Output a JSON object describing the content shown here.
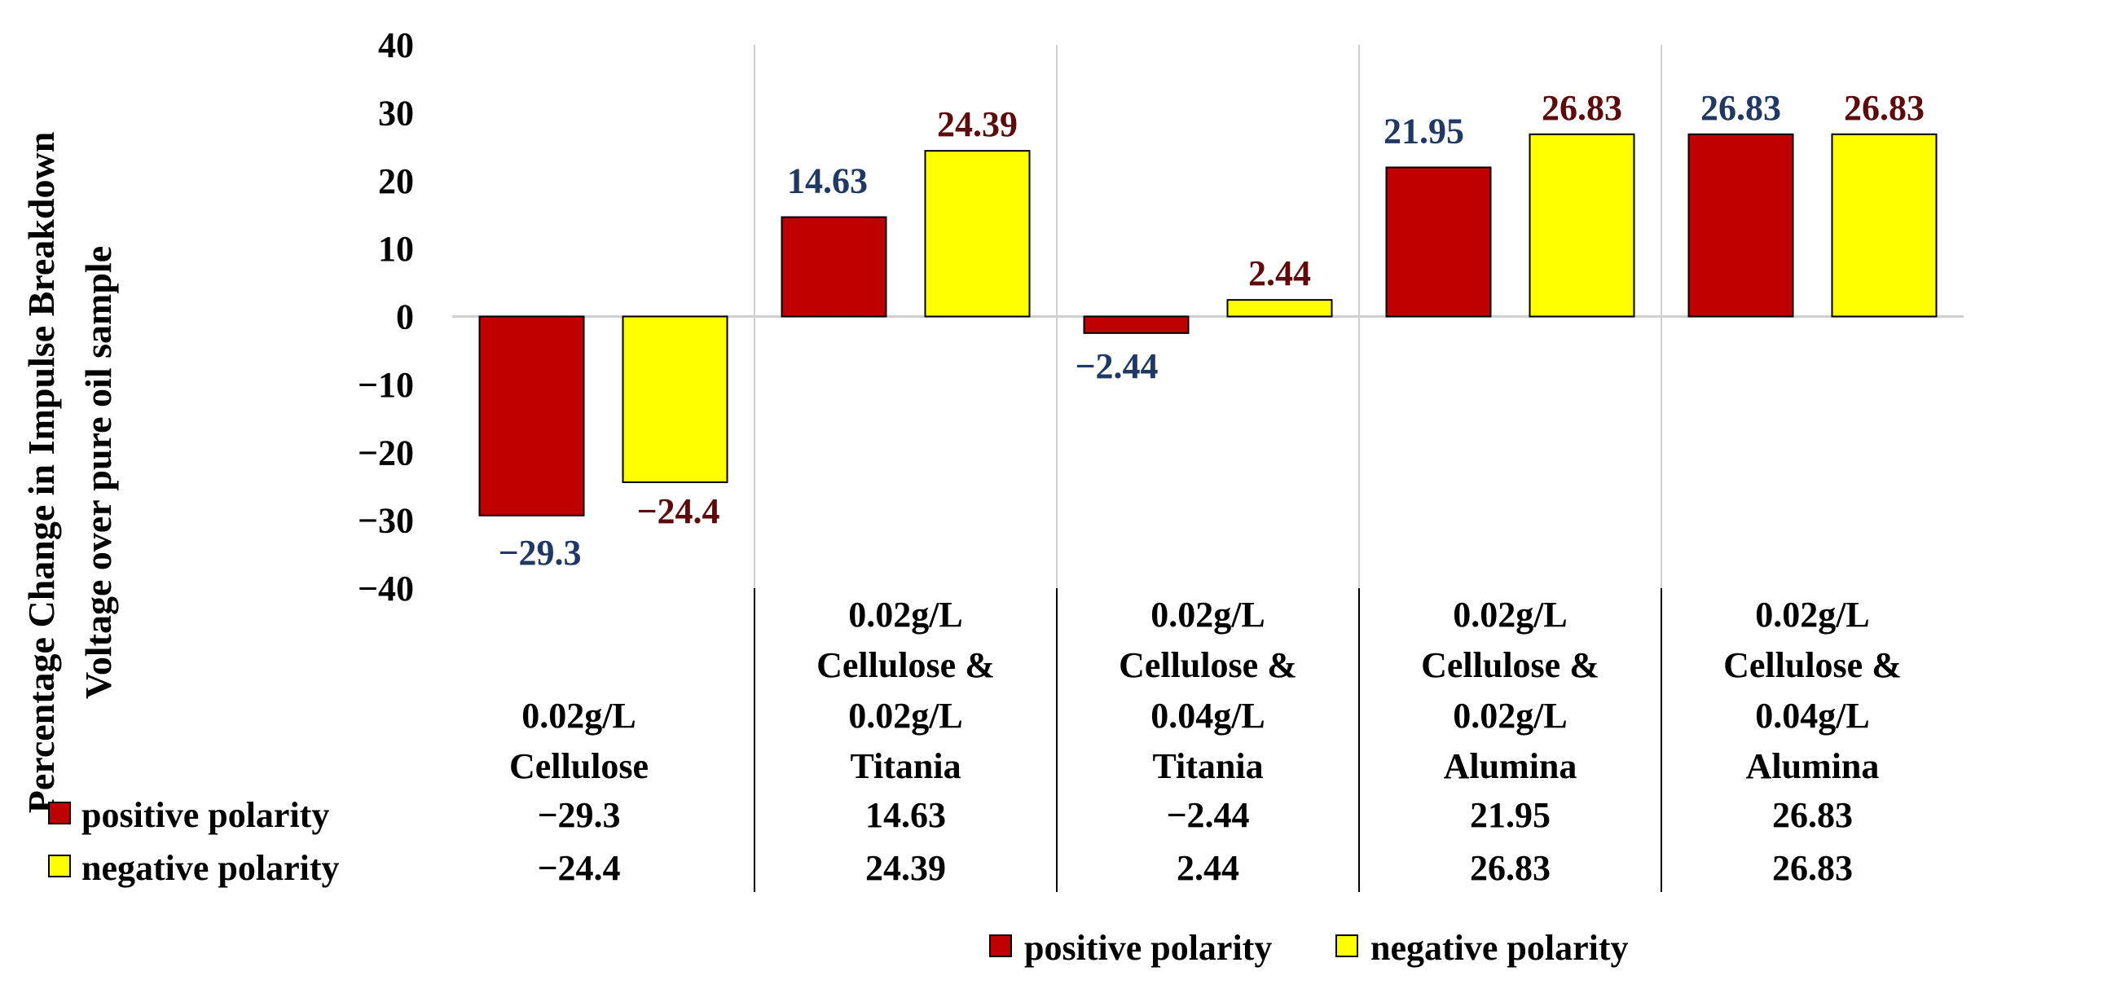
{
  "chart_data": {
    "type": "bar",
    "title": "",
    "ylabel": [
      "Percentage Change in Impulse Breakdown",
      "Voltage over pure oil sample"
    ],
    "xlabel": "",
    "ylim": [
      -40,
      40
    ],
    "yticks": [
      40,
      30,
      20,
      10,
      0,
      -10,
      -20,
      -30,
      -40
    ],
    "ytick_labels": [
      "40",
      "30",
      "20",
      "10",
      "0",
      "−10",
      "−20",
      "−30",
      "−40"
    ],
    "categories": [
      [
        "0.02g/L",
        "Cellulose"
      ],
      [
        "0.02g/L",
        "Cellulose &",
        "0.02g/L",
        "Titania"
      ],
      [
        "0.02g/L",
        "Cellulose &",
        "0.04g/L",
        "Titania"
      ],
      [
        "0.02g/L",
        "Cellulose &",
        "0.02g/L",
        "Alumina"
      ],
      [
        "0.02g/L",
        "Cellulose &",
        "0.04g/L",
        "Alumina"
      ]
    ],
    "series": [
      {
        "name": "positive polarity",
        "color": "#C00000",
        "label_color": "#1F3864",
        "values": [
          -29.3,
          14.63,
          -2.44,
          21.95,
          26.83
        ],
        "labels": [
          "−29.3",
          "14.63",
          "−2.44",
          "21.95",
          "26.83"
        ]
      },
      {
        "name": "negative polarity",
        "color": "#FFFF00",
        "label_color": "#5C0A0A",
        "values": [
          -24.4,
          24.39,
          2.44,
          26.83,
          26.83
        ],
        "labels": [
          "−24.4",
          "24.39",
          "2.44",
          "26.83",
          "26.83"
        ]
      }
    ],
    "legend": [
      "positive polarity",
      "negative polarity"
    ],
    "legend_position": "bottom-center",
    "data_table": true,
    "grid": false
  }
}
